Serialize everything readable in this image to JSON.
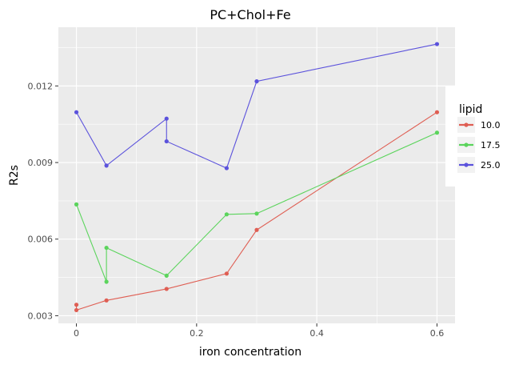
{
  "chart_data": {
    "type": "line",
    "title": "PC+Chol+Fe",
    "xlabel": "iron concentration",
    "ylabel": "R2s",
    "xlim": [
      -0.03,
      0.63
    ],
    "ylim": [
      0.0027,
      0.0143
    ],
    "x_ticks": [
      0,
      0.2,
      0.4,
      0.6
    ],
    "x_tick_labels": [
      "0",
      "0.2",
      "0.4",
      "0.6"
    ],
    "y_ticks": [
      0.003,
      0.006,
      0.009,
      0.012
    ],
    "y_tick_labels": [
      "0.003",
      "0.006",
      "0.009",
      "0.012"
    ],
    "grid": true,
    "legend": {
      "title": "lipid",
      "position": "right"
    },
    "series": [
      {
        "name": "10.0",
        "color": "#df5e53",
        "points": [
          {
            "x": 0,
            "y": 0.00343
          },
          {
            "x": 0,
            "y": 0.00322
          },
          {
            "x": 0.05,
            "y": 0.0036
          },
          {
            "x": 0.15,
            "y": 0.00405
          },
          {
            "x": 0.25,
            "y": 0.00465
          },
          {
            "x": 0.3,
            "y": 0.00636
          },
          {
            "x": 0.6,
            "y": 0.01097
          }
        ]
      },
      {
        "name": "17.5",
        "color": "#5bd45c",
        "points": [
          {
            "x": 0,
            "y": 0.00736
          },
          {
            "x": 0.05,
            "y": 0.00433
          },
          {
            "x": 0.05,
            "y": 0.00566
          },
          {
            "x": 0.15,
            "y": 0.00457
          },
          {
            "x": 0.25,
            "y": 0.00697
          },
          {
            "x": 0.3,
            "y": 0.007
          },
          {
            "x": 0.6,
            "y": 0.01017
          }
        ]
      },
      {
        "name": "25.0",
        "color": "#5b52dc",
        "points": [
          {
            "x": 0,
            "y": 0.01097
          },
          {
            "x": 0.05,
            "y": 0.00888
          },
          {
            "x": 0.15,
            "y": 0.01072
          },
          {
            "x": 0.15,
            "y": 0.00983
          },
          {
            "x": 0.25,
            "y": 0.00878
          },
          {
            "x": 0.3,
            "y": 0.01218
          },
          {
            "x": 0.6,
            "y": 0.01364
          }
        ]
      }
    ]
  }
}
